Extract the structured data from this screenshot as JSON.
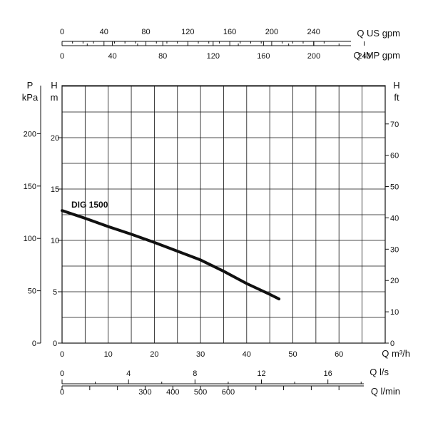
{
  "chart_data": {
    "type": "line",
    "title": "",
    "series": [
      {
        "name": "DIG 1500",
        "color": "#111111",
        "x": [
          0,
          5,
          10,
          15,
          20,
          25,
          30,
          35,
          40,
          45,
          47
        ],
        "y": [
          12.9,
          12.15,
          11.35,
          10.6,
          9.8,
          8.95,
          8.1,
          7.0,
          5.8,
          4.75,
          4.3
        ]
      }
    ],
    "grid": true,
    "x_primary": {
      "label": "Q m³/h",
      "range": [
        0,
        70
      ],
      "ticks": [
        0,
        10,
        20,
        30,
        40,
        50,
        60
      ],
      "tick_labels": [
        "0",
        "10",
        "20",
        "30",
        "40",
        "50",
        "60"
      ]
    },
    "y_primary": {
      "label_top": "H",
      "label_unit": "m",
      "range": [
        0,
        25
      ],
      "ticks": [
        0,
        5,
        10,
        15,
        20
      ],
      "tick_labels": [
        "0",
        "5",
        "10",
        "15",
        "20"
      ]
    },
    "secondary_axes": {
      "pressure": {
        "label_top": "P",
        "label_unit": "kPa",
        "ticks": [
          0,
          50,
          100,
          150,
          200
        ],
        "tick_labels": [
          "0",
          "50",
          "100",
          "150",
          "200"
        ]
      },
      "head_ft": {
        "label_top": "H",
        "label_unit": "ft",
        "ticks": [
          0,
          10,
          20,
          30,
          40,
          50,
          60,
          70
        ],
        "tick_labels": [
          "0",
          "10",
          "20",
          "30",
          "40",
          "50",
          "60",
          "70"
        ]
      },
      "us_gpm": {
        "label": "Q US gpm",
        "ticks": [
          0,
          40,
          80,
          120,
          160,
          200,
          240
        ],
        "tick_labels": [
          "0",
          "40",
          "80",
          "120",
          "160",
          "200",
          "240"
        ]
      },
      "imp_gpm": {
        "label": "Q IMP gpm",
        "ticks": [
          0,
          40,
          80,
          120,
          160,
          200,
          240
        ],
        "tick_labels": [
          "0",
          "40",
          "80",
          "120",
          "160",
          "200",
          "240"
        ]
      },
      "l_per_s": {
        "label": "Q l/s",
        "ticks": [
          0,
          4,
          8,
          12,
          16
        ],
        "tick_labels": [
          "0",
          "4",
          "8",
          "12",
          "16"
        ]
      },
      "l_per_min": {
        "label": "Q l/min",
        "ticks": [
          0,
          300,
          400,
          500,
          600
        ],
        "tick_labels": [
          "0",
          "300",
          "400",
          "500",
          "600"
        ]
      }
    }
  }
}
